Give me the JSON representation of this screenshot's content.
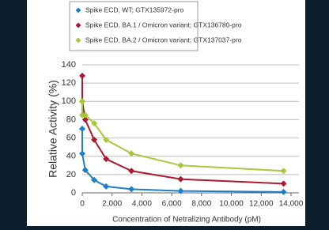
{
  "chart_data": {
    "type": "scatter",
    "x_label": "Concentration of Netralizing Antibody (pM)",
    "y_label": "Relative Activity (%)",
    "xlim": [
      0,
      14000
    ],
    "xticks": [
      0,
      {
        "value": 2000,
        "label": "2,000"
      },
      {
        "value": 4000,
        "label": "4,000"
      },
      {
        "value": 6000,
        "label": "6,000"
      },
      {
        "value": 8000,
        "label": "8,000"
      },
      {
        "value": 10000,
        "label": "10,000"
      },
      {
        "value": 12000,
        "label": "12,000"
      },
      {
        "value": 14000,
        "label": "14,000"
      }
    ],
    "ylim": [
      0,
      140
    ],
    "yticks": [
      0,
      20,
      40,
      60,
      80,
      100,
      120,
      140
    ],
    "grid": true,
    "series": [
      {
        "name": "Spike ECD, WT; GTX135972-pro",
        "color": "#1f7fc4",
        "x": [
          0,
          0,
          200,
          800,
          1600,
          3300,
          6600,
          13500
        ],
        "values": [
          70,
          43,
          25,
          14,
          7,
          4,
          2,
          1
        ]
      },
      {
        "name": "Spike ECD, BA.1 / Omicron variant; GTX136780-pro",
        "color": "#b0182f",
        "x": [
          0,
          0,
          200,
          800,
          1600,
          3300,
          6600,
          13500
        ],
        "values": [
          128,
          100,
          80,
          58,
          37,
          24,
          15,
          10
        ]
      },
      {
        "name": "Spike ECD, BA.2 / Omicron variant; GTX137037-pro",
        "color": "#a6c83a",
        "x": [
          0,
          0,
          200,
          800,
          1600,
          3300,
          6600,
          13500
        ],
        "values": [
          100,
          85,
          85,
          76,
          58,
          43,
          30,
          24
        ]
      }
    ]
  }
}
